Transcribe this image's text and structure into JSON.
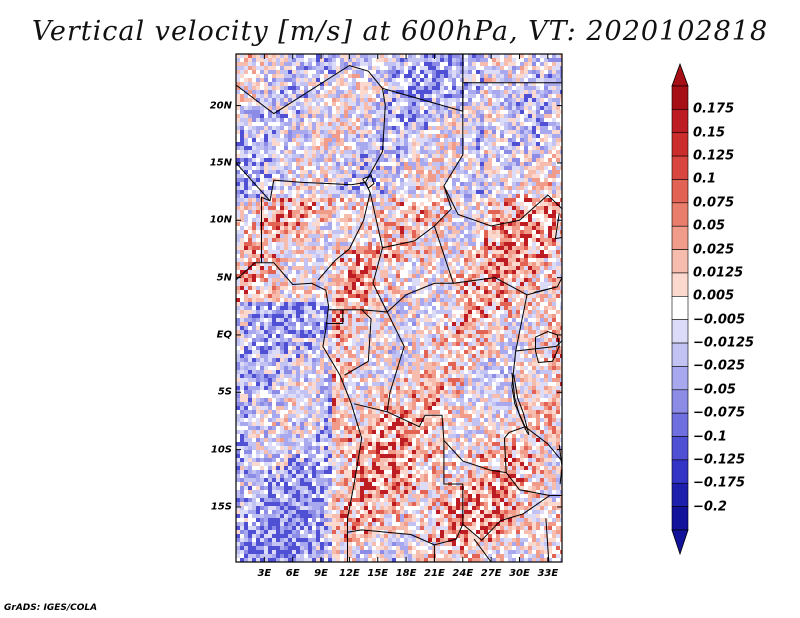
{
  "title": "Vertical velocity [m/s] at 600hPa, VT: 2020102818",
  "map": {
    "lat_labels": [
      "20N",
      "15N",
      "10N",
      "5N",
      "EQ",
      "5S",
      "10S",
      "15S"
    ],
    "lon_labels": [
      "3E",
      "6E",
      "9E",
      "12E",
      "15E",
      "18E",
      "21E",
      "24E",
      "27E",
      "30E",
      "33E"
    ],
    "lat_values": [
      20,
      15,
      10,
      5,
      0,
      -5,
      -10,
      -15
    ],
    "lon_values": [
      3,
      6,
      9,
      12,
      15,
      18,
      21,
      24,
      27,
      30,
      33
    ],
    "lat_range": [
      -19.8,
      24.5
    ],
    "lon_range": [
      0,
      34.5
    ]
  },
  "colorbar": {
    "labels": [
      "0.175",
      "0.15",
      "0.125",
      "0.1",
      "0.075",
      "0.05",
      "0.025",
      "0.0125",
      "0.005",
      "−0.005",
      "−0.0125",
      "−0.025",
      "−0.05",
      "−0.075",
      "−0.1",
      "−0.125",
      "−0.175",
      "−0.2"
    ],
    "colors": [
      "#a50f15",
      "#bd1d22",
      "#cb2d2d",
      "#d8463f",
      "#e26353",
      "#ea7e6d",
      "#f19c8b",
      "#f6bcad",
      "#fbd9cf",
      "#ffffff",
      "#dcdcf8",
      "#c2c2f3",
      "#a8a8ee",
      "#8c8ce7",
      "#6f6fdf",
      "#5050d5",
      "#3333c6",
      "#1f1fae",
      "#12129a"
    ],
    "top_color": "#a50f15",
    "bottom_color": "#12129a"
  },
  "credit": "GrADS: IGES/COLA"
}
